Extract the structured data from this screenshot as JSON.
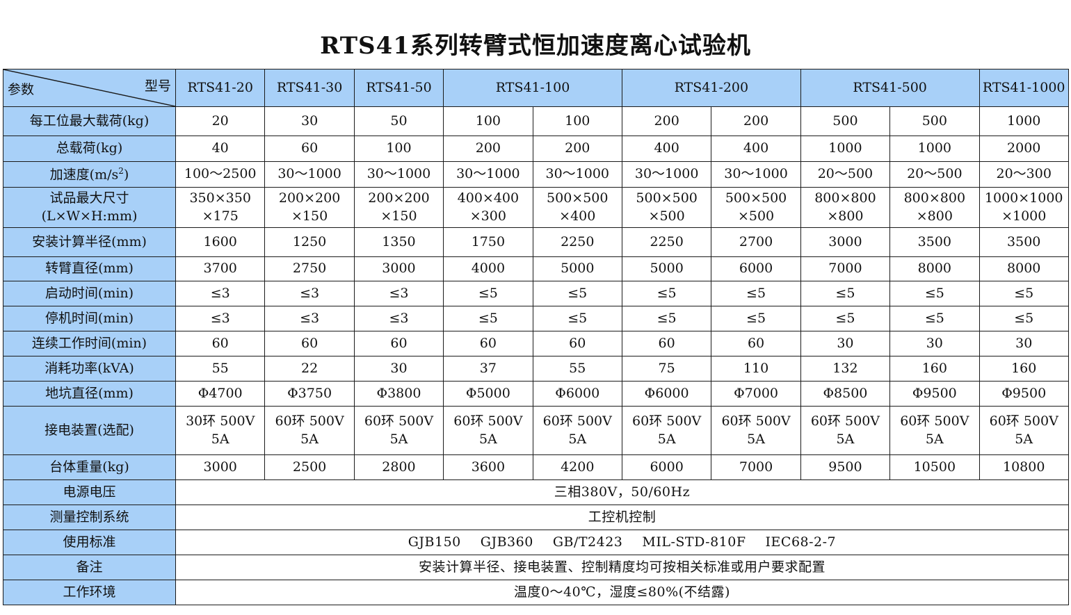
{
  "title": "RTS41系列转臂式恒加速度离心试验机",
  "corner": {
    "left": "参数",
    "right": "型号"
  },
  "models": [
    {
      "label": "RTS41-20",
      "span": 1
    },
    {
      "label": "RTS41-30",
      "span": 1
    },
    {
      "label": "RTS41-50",
      "span": 1
    },
    {
      "label": "RTS41-100",
      "span": 2
    },
    {
      "label": "RTS41-200",
      "span": 2
    },
    {
      "label": "RTS41-500",
      "span": 2
    },
    {
      "label": "RTS41-1000",
      "span": 1
    }
  ],
  "rows": [
    {
      "label": "每工位最大载荷(kg)",
      "values": [
        "20",
        "30",
        "50",
        "100",
        "100",
        "200",
        "200",
        "500",
        "500",
        "1000"
      ]
    },
    {
      "label": "总载荷(kg)",
      "values": [
        "40",
        "60",
        "100",
        "200",
        "200",
        "400",
        "400",
        "1000",
        "1000",
        "2000"
      ]
    },
    {
      "label_main": "加速度(m/s",
      "label_sup": "2",
      "label_end": ")",
      "values": [
        "100～2500",
        "30～1000",
        "30～1000",
        "30～1000",
        "30～1000",
        "30～1000",
        "30～1000",
        "20～500",
        "20～500",
        "20～300"
      ]
    },
    {
      "label": "试品最大尺寸",
      "label2": "(L×W×H:mm)",
      "values": [
        [
          "350×350",
          "×175"
        ],
        [
          "200×200",
          "×150"
        ],
        [
          "200×200",
          "×150"
        ],
        [
          "400×400",
          "×300"
        ],
        [
          "500×500",
          "×400"
        ],
        [
          "500×500",
          "×500"
        ],
        [
          "500×500",
          "×500"
        ],
        [
          "800×800",
          "×800"
        ],
        [
          "800×800",
          "×800"
        ],
        [
          "1000×1000",
          "×1000"
        ]
      ]
    },
    {
      "label": "安装计算半径(mm)",
      "values": [
        "1600",
        "1250",
        "1350",
        "1750",
        "2250",
        "2250",
        "2700",
        "3000",
        "3500",
        "3500"
      ]
    },
    {
      "label": "转臂直径(mm)",
      "values": [
        "3700",
        "2750",
        "3000",
        "4000",
        "5000",
        "5000",
        "6000",
        "7000",
        "8000",
        "8000"
      ]
    },
    {
      "label": "启动时间(min)",
      "values": [
        "≤3",
        "≤3",
        "≤3",
        "≤5",
        "≤5",
        "≤5",
        "≤5",
        "≤5",
        "≤5",
        "≤5"
      ]
    },
    {
      "label": "停机时间(min)",
      "values": [
        "≤3",
        "≤3",
        "≤3",
        "≤5",
        "≤5",
        "≤5",
        "≤5",
        "≤5",
        "≤5",
        "≤5"
      ]
    },
    {
      "label": "连续工作时间(min)",
      "values": [
        "60",
        "60",
        "60",
        "60",
        "60",
        "60",
        "60",
        "30",
        "30",
        "30"
      ]
    },
    {
      "label": "消耗功率(kVA)",
      "values": [
        "55",
        "22",
        "30",
        "37",
        "55",
        "75",
        "110",
        "132",
        "160",
        "160"
      ]
    },
    {
      "label": "地坑直径(mm)",
      "values": [
        "Φ4700",
        "Φ3750",
        "Φ3800",
        "Φ5000",
        "Φ6000",
        "Φ6000",
        "Φ7000",
        "Φ8500",
        "Φ9500",
        "Φ9500"
      ]
    },
    {
      "label": "接电装置(选配)",
      "values": [
        [
          "30环 500V",
          "5A"
        ],
        [
          "60环 500V",
          "5A"
        ],
        [
          "60环 500V",
          "5A"
        ],
        [
          "60环 500V",
          "5A"
        ],
        [
          "60环 500V",
          "5A"
        ],
        [
          "60环 500V",
          "5A"
        ],
        [
          "60环 500V",
          "5A"
        ],
        [
          "60环 500V",
          "5A"
        ],
        [
          "60环 500V",
          "5A"
        ],
        [
          "60环 500V",
          "5A"
        ]
      ]
    },
    {
      "label": "台体重量(kg)",
      "values": [
        "3000",
        "2500",
        "2800",
        "3600",
        "4200",
        "6000",
        "7000",
        "9500",
        "10500",
        "10800"
      ]
    }
  ],
  "merged_rows": [
    {
      "label": "电源电压",
      "value": "三相380V，50/60Hz"
    },
    {
      "label": "测量控制系统",
      "value": "工控机控制"
    },
    {
      "label": "使用标准",
      "items": [
        "GJB150",
        "GJB360",
        "GB/T2423",
        "MIL-STD-810F",
        "IEC68-2-7"
      ]
    },
    {
      "label": "备注",
      "value": "安装计算半径、接电装置、控制精度均可按相关标准或用户要求配置"
    },
    {
      "label": "工作环境",
      "value": "温度0～40℃，湿度≤80%(不结露)"
    }
  ],
  "colors": {
    "header_bg": "#a8d0f8",
    "border": "#1a1a1a"
  }
}
